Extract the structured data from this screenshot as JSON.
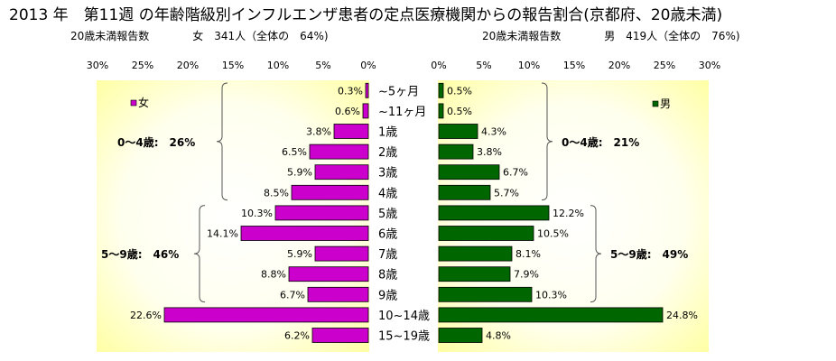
{
  "title": "2013 年　第11週 の年齢階級別インフルエンザ患者の定点医療機関からの報告割合(京都府、20歳未満)",
  "female_header": "20歳未満報告数　　　　女　341人（全体の　64%)",
  "male_header": "20歳未満報告数　　　　男　419人（全体の　76%)",
  "colors": {
    "female": "#cc00cc",
    "male": "#006600",
    "plot_bg_edge": "#ffff99"
  },
  "chart_data": [
    {
      "type": "bar",
      "orientation": "horizontal",
      "direction": "right-to-left",
      "categories": [
        "~5ヶ月",
        "~11ヶ月",
        "1歳",
        "2歳",
        "3歳",
        "4歳",
        "5歳",
        "6歳",
        "7歳",
        "8歳",
        "9歳",
        "10~14歳",
        "15~19歳"
      ],
      "series": [
        {
          "name": "女",
          "values": [
            0.3,
            0.6,
            3.8,
            6.5,
            5.9,
            8.5,
            10.3,
            14.1,
            5.9,
            8.8,
            6.7,
            22.6,
            6.2
          ]
        }
      ],
      "data_labels": [
        "0.3%",
        "0.6%",
        "3.8%",
        "6.5%",
        "5.9%",
        "8.5%",
        "10.3%",
        "14.1%",
        "5.9%",
        "8.8%",
        "6.7%",
        "22.6%",
        "6.2%"
      ],
      "xlim": [
        0,
        30
      ],
      "x_ticks": [
        "30%",
        "25%",
        "20%",
        "15%",
        "10%",
        "5%",
        "0%"
      ],
      "legend": "top-left",
      "groups": [
        {
          "label": "0～4歳:　26%",
          "from": 0,
          "to": 5
        },
        {
          "label": "5～9歳:　46%",
          "from": 6,
          "to": 10
        }
      ]
    },
    {
      "type": "bar",
      "orientation": "horizontal",
      "direction": "left-to-right",
      "categories": [
        "~5ヶ月",
        "~11ヶ月",
        "1歳",
        "2歳",
        "3歳",
        "4歳",
        "5歳",
        "6歳",
        "7歳",
        "8歳",
        "9歳",
        "10~14歳",
        "15~19歳"
      ],
      "series": [
        {
          "name": "男",
          "values": [
            0.5,
            0.5,
            4.3,
            3.8,
            6.7,
            5.7,
            12.2,
            10.5,
            8.1,
            7.9,
            10.3,
            24.8,
            4.8
          ]
        }
      ],
      "data_labels": [
        "0.5%",
        "0.5%",
        "4.3%",
        "3.8%",
        "6.7%",
        "5.7%",
        "12.2%",
        "10.5%",
        "8.1%",
        "7.9%",
        "10.3%",
        "24.8%",
        "4.8%"
      ],
      "xlim": [
        0,
        30
      ],
      "x_ticks": [
        "0%",
        "5%",
        "10%",
        "15%",
        "20%",
        "25%",
        "30%"
      ],
      "legend": "top-right",
      "groups": [
        {
          "label": "0～4歳:　21%",
          "from": 0,
          "to": 5
        },
        {
          "label": "5～9歳:　49%",
          "from": 6,
          "to": 10
        }
      ]
    }
  ]
}
